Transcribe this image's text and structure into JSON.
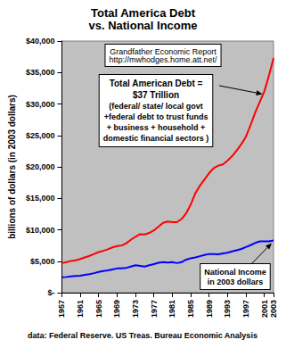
{
  "chart_data": {
    "type": "line",
    "title": "Total America Debt",
    "subtitle": "vs. National Income",
    "ylabel": "billions of dollars (in 2003 dollars)",
    "source": "data: Federal Reserve. US Treas. Bureau Economic Analysis",
    "annotations": [
      "Grandfather Economic Report\nhttp://mwhodges.home.att.net/"
    ],
    "x": [
      1957,
      1958,
      1959,
      1960,
      1961,
      1962,
      1963,
      1964,
      1965,
      1966,
      1967,
      1968,
      1969,
      1970,
      1971,
      1972,
      1973,
      1974,
      1975,
      1976,
      1977,
      1978,
      1979,
      1980,
      1981,
      1982,
      1983,
      1984,
      1985,
      1986,
      1987,
      1988,
      1989,
      1990,
      1991,
      1992,
      1993,
      1994,
      1995,
      1996,
      1997,
      1998,
      1999,
      2000,
      2001,
      2002,
      2003
    ],
    "series": [
      {
        "color": "#ff0000",
        "line_style": "solid",
        "marker": "none",
        "annotation": {
          "heading": "Total American Debt =\n$37 Trillion",
          "text": "(federal/ state/ local govt\n+federal debt to trust funds\n+ business + household +\ndomestic financial sectors )"
        },
        "values": [
          4700,
          4850,
          5050,
          5150,
          5350,
          5600,
          5850,
          6150,
          6450,
          6650,
          6900,
          7200,
          7400,
          7500,
          7850,
          8400,
          8900,
          9300,
          9250,
          9500,
          9900,
          10500,
          11100,
          11300,
          11200,
          11200,
          11700,
          12600,
          14000,
          15800,
          17000,
          18000,
          19000,
          19800,
          20200,
          20400,
          21000,
          21700,
          22600,
          23600,
          24800,
          26600,
          28600,
          30300,
          32000,
          34500,
          37300
        ]
      },
      {
        "color": "#0000ff",
        "line_style": "solid",
        "marker": "none",
        "annotation": {
          "text": "National Income\nin 2003 dollars"
        },
        "values": [
          2450,
          2500,
          2600,
          2650,
          2700,
          2850,
          2950,
          3100,
          3300,
          3450,
          3550,
          3700,
          3850,
          3850,
          3950,
          4150,
          4350,
          4250,
          4150,
          4350,
          4550,
          4750,
          4850,
          4800,
          4850,
          4700,
          4850,
          5250,
          5450,
          5600,
          5800,
          6000,
          6150,
          6150,
          6100,
          6250,
          6350,
          6550,
          6750,
          6950,
          7250,
          7550,
          7900,
          8150,
          8150,
          8150,
          8300
        ]
      }
    ],
    "xlim": [
      1957,
      2003
    ],
    "xticks": [
      1957,
      1961,
      1965,
      1969,
      1973,
      1977,
      1981,
      1985,
      1989,
      1993,
      1997,
      2001,
      2003
    ],
    "ylim": [
      0,
      40000
    ],
    "yticks": [
      {
        "value": 0,
        "label": "$-"
      },
      {
        "value": 5000,
        "label": "$5,000"
      },
      {
        "value": 10000,
        "label": "$10,000"
      },
      {
        "value": 15000,
        "label": "$15,000"
      },
      {
        "value": 20000,
        "label": "$20,000"
      },
      {
        "value": 25000,
        "label": "$25,000"
      },
      {
        "value": 30000,
        "label": "$30,000"
      },
      {
        "value": 35000,
        "label": "$35,000"
      },
      {
        "value": 40000,
        "label": "$40,000"
      }
    ],
    "grid": false
  }
}
